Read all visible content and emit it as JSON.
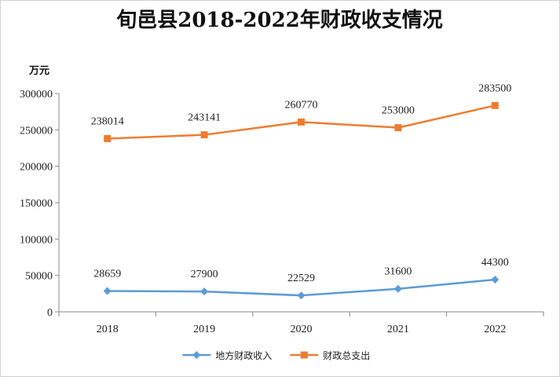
{
  "chart_data": {
    "type": "line",
    "title": "旬邑县2018-2022年财政收支情况",
    "ylabel": "万元",
    "xlabel": "",
    "categories": [
      "2018",
      "2019",
      "2020",
      "2021",
      "2022"
    ],
    "ylim": [
      0,
      300000
    ],
    "yticks": [
      0,
      50000,
      100000,
      150000,
      200000,
      250000,
      300000
    ],
    "ytick_labels": [
      "0",
      "50000",
      "100000",
      "150000",
      "200000",
      "250000",
      "300000"
    ],
    "grid": false,
    "legend_position": "bottom",
    "series": [
      {
        "name": "地方财政收入",
        "values": [
          28659,
          27900,
          22529,
          31600,
          44300
        ],
        "value_labels": [
          "28659",
          "27900",
          "22529",
          "31600",
          "44300"
        ],
        "color": "#5B9BD5",
        "marker": "diamond"
      },
      {
        "name": "财政总支出",
        "values": [
          238014,
          243141,
          260770,
          253000,
          283500
        ],
        "value_labels": [
          "238014",
          "243141",
          "260770",
          "253000",
          "283500"
        ],
        "color": "#ED7D31",
        "marker": "square"
      }
    ]
  }
}
